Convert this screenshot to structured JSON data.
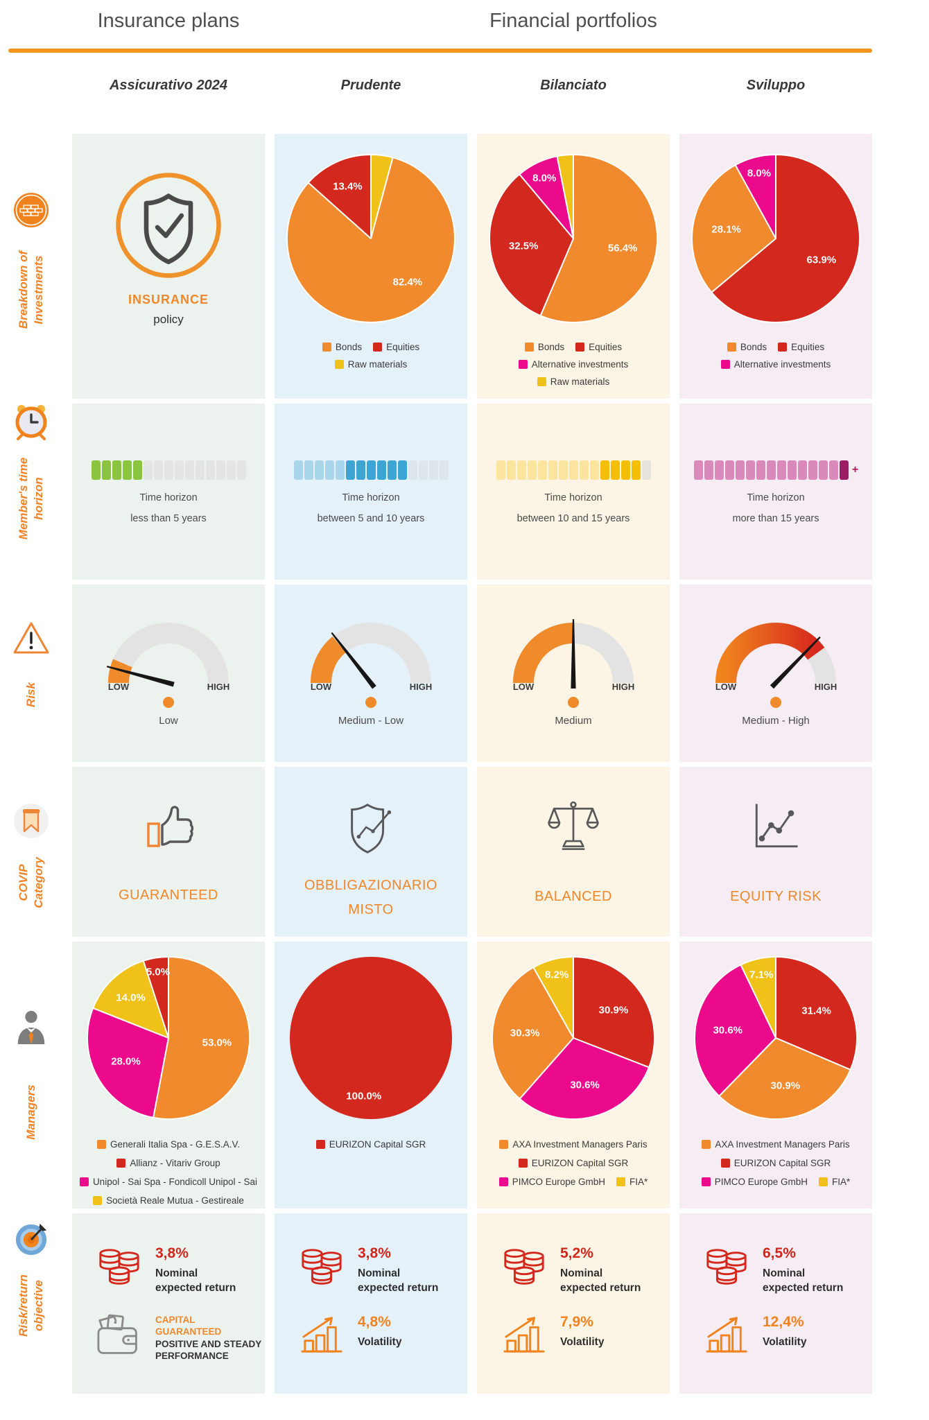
{
  "header": {
    "left_title": "Insurance plans",
    "right_title": "Financial portfolios"
  },
  "accent_color": "#F5941D",
  "row_labels": [
    "Breakdown of\nInvestments",
    "Member's time\nhorizon",
    "Risk",
    "COVIP\nCategory",
    "Managers",
    "Risk/return\nobjective"
  ],
  "plans": [
    {
      "title": "Assicurativo 2024",
      "bg": "#ECF3EE",
      "breakdown": {
        "line1": "INSURANCE",
        "line2": "policy"
      },
      "time_horizon": {
        "line1": "Time horizon",
        "line2": "less than 5 years"
      },
      "covip": "GUARANTEED",
      "objective": {
        "return_value": "3,8%",
        "return_label": "Nominal\nexpected return",
        "capital": "CAPITAL\nGUARANTEED",
        "performance": "POSITIVE AND STEADY\nPERFORMANCE"
      }
    },
    {
      "title": "Prudente",
      "bg": "#E5F1F8",
      "time_horizon": {
        "line1": "Time horizon",
        "line2": "between 5 and 10 years"
      },
      "covip": "OBBLIGAZIONARIO\nMISTO",
      "objective": {
        "return_value": "3,8%",
        "return_label": "Nominal\nexpected return",
        "vol_value": "4,8%",
        "vol_label": "Volatility"
      }
    },
    {
      "title": "Bilanciato",
      "bg": "#FCF5E5",
      "time_horizon": {
        "line1": "Time horizon",
        "line2": "between 10 and 15 years"
      },
      "covip": "BALANCED",
      "objective": {
        "return_value": "5,2%",
        "return_label": "Nominal\nexpected return",
        "vol_value": "7,9%",
        "vol_label": "Volatility"
      }
    },
    {
      "title": "Sviluppo",
      "bg": "#F6ECF3",
      "time_horizon": {
        "line1": "Time horizon",
        "line2": "more than 15 years"
      },
      "covip": "EQUITY RISK",
      "objective": {
        "return_value": "6,5%",
        "return_label": "Nominal\nexpected return",
        "vol_value": "12,4%",
        "vol_label": "Volatility"
      }
    }
  ],
  "chart_data": [
    {
      "id": "breakdown-prudente",
      "type": "pie",
      "title": "Prudente breakdown of investments",
      "slices": [
        {
          "label": "Raw materials",
          "value": 4.2,
          "color": "#F0C219",
          "show_label": false
        },
        {
          "label": "Bonds",
          "value": 82.4,
          "color": "#F1892D",
          "label_angle": 140,
          "label_r": 0.68
        },
        {
          "label": "Equities",
          "value": 13.4,
          "color": "#D2281E"
        }
      ],
      "legend": [
        {
          "label": "Bonds",
          "color": "#F1892D"
        },
        {
          "label": "Equities",
          "color": "#D2281E"
        },
        {
          "label": "Raw materials",
          "color": "#F0C219"
        }
      ]
    },
    {
      "id": "breakdown-bilanciato",
      "type": "pie",
      "title": "Bilanciato breakdown of investments",
      "slices": [
        {
          "label": "Bonds",
          "value": 56.4,
          "color": "#F1892D"
        },
        {
          "label": "Equities",
          "value": 32.5,
          "color": "#D2281E"
        },
        {
          "label": "Alternative investments",
          "value": 8.0,
          "color": "#EB0A8C"
        },
        {
          "label": "Raw materials",
          "value": 3.1,
          "color": "#F0C219",
          "show_label": false
        }
      ],
      "legend": [
        {
          "label": "Bonds",
          "color": "#F1892D"
        },
        {
          "label": "Equities",
          "color": "#D2281E"
        },
        {
          "label": "Alternative investments",
          "color": "#EB0A8C"
        },
        {
          "label": "Raw materials",
          "color": "#F0C219"
        }
      ]
    },
    {
      "id": "breakdown-sviluppo",
      "type": "pie",
      "title": "Sviluppo breakdown of investments",
      "slices": [
        {
          "label": "Equities",
          "value": 63.9,
          "color": "#D2281E"
        },
        {
          "label": "Bonds",
          "value": 28.1,
          "color": "#F1892D"
        },
        {
          "label": "Alternative investments",
          "value": 8.0,
          "color": "#EB0A8C"
        }
      ],
      "legend": [
        {
          "label": "Bonds",
          "color": "#F1892D"
        },
        {
          "label": "Equities",
          "color": "#D2281E"
        },
        {
          "label": "Alternative investments",
          "color": "#EB0A8C"
        }
      ]
    },
    {
      "id": "managers-assicurativo",
      "type": "pie",
      "title": "Assicurativo 2024 managers",
      "slices": [
        {
          "label": "Generali Italia Spa - G.E.S.A.V.",
          "value": 53.0,
          "color": "#F1892D"
        },
        {
          "label": "Unipol - Sai Spa - Fondicoll Unipol - Sai",
          "value": 28.0,
          "color": "#EB0A8C"
        },
        {
          "label": "Società Reale Mutua - Gestireale",
          "value": 14.0,
          "color": "#F0C219"
        },
        {
          "label": "Allianz - Vitariv Group",
          "value": 5.0,
          "color": "#D2281E",
          "label_r": 0.82
        }
      ],
      "legend": [
        {
          "label": "Generali Italia Spa - G.E.S.A.V.",
          "color": "#F1892D"
        },
        {
          "label": "Allianz - Vitariv Group",
          "color": "#D2281E"
        },
        {
          "label": "Unipol - Sai Spa - Fondicoll Unipol - Sai",
          "color": "#EB0A8C"
        },
        {
          "label": "Società Reale Mutua - Gestireale",
          "color": "#F0C219"
        }
      ]
    },
    {
      "id": "managers-prudente",
      "type": "pie",
      "title": "Prudente managers",
      "slices": [
        {
          "label": "EURIZON Capital SGR",
          "value": 100.0,
          "color": "#D2281E",
          "label_angle": 187,
          "label_r": 0.72
        }
      ],
      "legend": [
        {
          "label": "EURIZON Capital SGR",
          "color": "#D2281E"
        }
      ]
    },
    {
      "id": "managers-bilanciato",
      "type": "pie",
      "title": "Bilanciato managers",
      "slices": [
        {
          "label": "EURIZON Capital SGR",
          "value": 30.9,
          "color": "#D2281E"
        },
        {
          "label": "PIMCO Europe GmbH",
          "value": 30.6,
          "color": "#EB0A8C"
        },
        {
          "label": "AXA Investment Managers Paris",
          "value": 30.3,
          "color": "#F1892D"
        },
        {
          "label": "FIA*",
          "value": 8.2,
          "color": "#F0C219"
        }
      ],
      "legend": [
        {
          "label": "AXA Investment Managers Paris",
          "color": "#F1892D"
        },
        {
          "label": "EURIZON Capital SGR",
          "color": "#D2281E"
        },
        {
          "label": "PIMCO Europe GmbH",
          "color": "#EB0A8C"
        },
        {
          "label": "FIA*",
          "color": "#F0C219"
        }
      ]
    },
    {
      "id": "managers-sviluppo",
      "type": "pie",
      "title": "Sviluppo managers",
      "slices": [
        {
          "label": "EURIZON Capital SGR",
          "value": 31.4,
          "color": "#D2281E"
        },
        {
          "label": "AXA Investment Managers Paris",
          "value": 30.9,
          "color": "#F1892D"
        },
        {
          "label": "PIMCO Europe GmbH",
          "value": 30.6,
          "color": "#EB0A8C"
        },
        {
          "label": "FIA*",
          "value": 7.1,
          "color": "#F0C219"
        }
      ],
      "legend": [
        {
          "label": "AXA Investment Managers Paris",
          "color": "#F1892D"
        },
        {
          "label": "EURIZON Capital SGR",
          "color": "#D2281E"
        },
        {
          "label": "PIMCO Europe GmbH",
          "color": "#EB0A8C"
        },
        {
          "label": "FIA*",
          "color": "#F0C219"
        }
      ]
    },
    {
      "id": "horizon-assicurativo",
      "type": "segmented-bar",
      "title": "Time horizon less than 5 years",
      "filled": 5,
      "total": 15,
      "groups": [
        {
          "color": "#8BC540",
          "count": 5
        },
        {
          "color": "#E3E5E2",
          "count": 10
        }
      ]
    },
    {
      "id": "horizon-prudente",
      "type": "segmented-bar",
      "title": "Time horizon between 5 and 10 years",
      "filled": 11,
      "total": 15,
      "groups": [
        {
          "color": "#A9D6EB",
          "count": 5
        },
        {
          "color": "#3DA5D4",
          "count": 6
        },
        {
          "color": "#DDE6EA",
          "count": 4
        }
      ]
    },
    {
      "id": "horizon-bilanciato",
      "type": "segmented-bar",
      "title": "Time horizon between 10 and 15 years",
      "filled": 14,
      "total": 15,
      "groups": [
        {
          "color": "#FBE49E",
          "count": 10
        },
        {
          "color": "#F5BE07",
          "count": 4
        },
        {
          "color": "#E5E3DC",
          "count": 1
        }
      ]
    },
    {
      "id": "horizon-sviluppo",
      "type": "segmented-bar",
      "title": "Time horizon more than 15 years",
      "filled": 15,
      "total": 15,
      "groups": [
        {
          "color": "#D98ABB",
          "count": 14
        },
        {
          "color": "#9C1C66",
          "count": 1
        }
      ],
      "plus": {
        "symbol": "+",
        "color": "#C0175D"
      }
    },
    {
      "id": "risk-assicurativo",
      "type": "gauge",
      "title": "Assicurativo 2024 risk",
      "fill_pct": 13,
      "needle_deg": -75,
      "color": "#EF8B2B",
      "low": "LOW",
      "high": "HIGH",
      "level": "Low"
    },
    {
      "id": "risk-prudente",
      "type": "gauge",
      "title": "Prudente risk",
      "fill_pct": 28,
      "needle_deg": -38,
      "color": "#EF8B2B",
      "low": "LOW",
      "high": "HIGH",
      "level": "Medium - Low"
    },
    {
      "id": "risk-bilanciato",
      "type": "gauge",
      "title": "Bilanciato risk",
      "fill_pct": 50,
      "needle_deg": 0,
      "color": "#EF8B2B",
      "low": "LOW",
      "high": "HIGH",
      "level": "Medium"
    },
    {
      "id": "risk-sviluppo",
      "type": "gauge",
      "title": "Sviluppo risk",
      "fill_pct": 80,
      "needle_deg": 44,
      "gradient": [
        "#F0831E",
        "#D6281E"
      ],
      "low": "LOW",
      "high": "HIGH",
      "level": "Medium - High"
    }
  ]
}
